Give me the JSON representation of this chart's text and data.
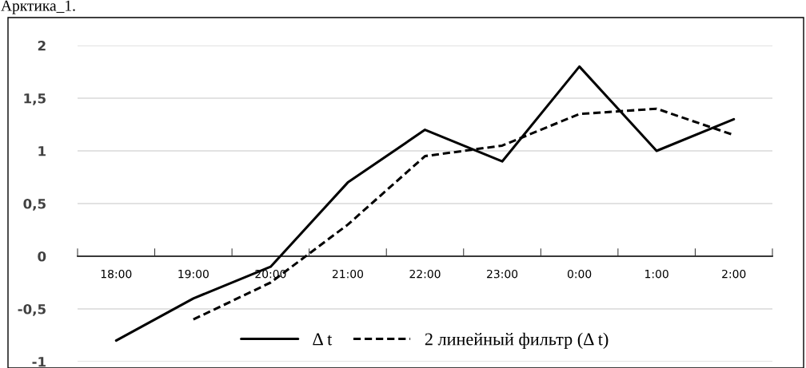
{
  "chart_data": {
    "type": "line",
    "annotations": [
      "Арктика_1."
    ],
    "categories": [
      "18:00",
      "19:00",
      "20:00",
      "21:00",
      "22:00",
      "23:00",
      "0:00",
      "1:00",
      "2:00"
    ],
    "series": [
      {
        "name": "Δ t",
        "color": "#000000",
        "line_style": "solid",
        "values": [
          -0.8,
          -0.4,
          -0.1,
          0.7,
          1.2,
          0.9,
          1.8,
          1.0,
          1.3
        ]
      },
      {
        "name": "2 линейный фильтр (Δ t)",
        "color": "#000000",
        "line_style": "dashed",
        "values": [
          null,
          -0.6,
          -0.25,
          0.3,
          0.95,
          1.05,
          1.35,
          1.4,
          1.15
        ]
      }
    ],
    "ylim": [
      -1,
      2
    ],
    "yticks": [
      {
        "value": -1,
        "label": "-1"
      },
      {
        "value": -0.5,
        "label": "-0,5"
      },
      {
        "value": 0,
        "label": "0"
      },
      {
        "value": 0.5,
        "label": "0,5"
      },
      {
        "value": 1,
        "label": "1"
      },
      {
        "value": 1.5,
        "label": "1,5"
      },
      {
        "value": 2,
        "label": "2"
      }
    ],
    "grid": "y",
    "legend": "bottom",
    "marker": "none"
  }
}
